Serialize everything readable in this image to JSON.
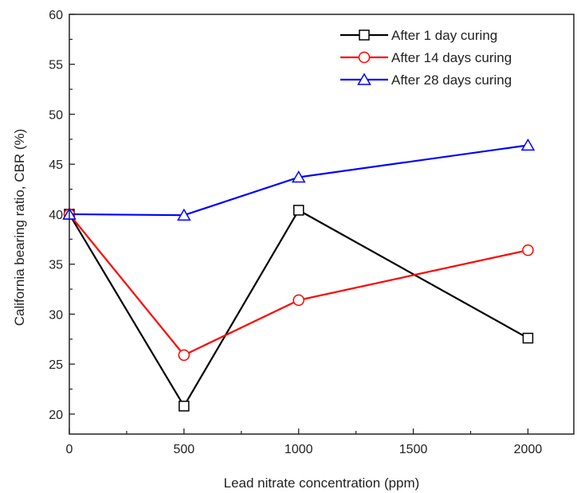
{
  "chart_data": {
    "type": "line",
    "xlabel": "Lead nitrate concentration (ppm)",
    "ylabel": "California bearing ratio, CBR (%)",
    "xlim": [
      0,
      2200
    ],
    "ylim": [
      18,
      60
    ],
    "xticks": [
      0,
      500,
      1000,
      1500,
      2000
    ],
    "yticks": [
      20,
      25,
      30,
      35,
      40,
      45,
      50,
      55,
      60
    ],
    "x_tick_labels": [
      "0",
      "500",
      "1000",
      "1500",
      "2000"
    ],
    "y_tick_labels": [
      "20",
      "25",
      "30",
      "35",
      "40",
      "45",
      "50",
      "55",
      "60"
    ],
    "legend_position": "top-right",
    "grid": false,
    "series": [
      {
        "name": "After 1 day curing",
        "color": "#000000",
        "marker": "square",
        "x": [
          0,
          500,
          1000,
          2000
        ],
        "y": [
          40.0,
          20.8,
          40.4,
          27.6
        ]
      },
      {
        "name": "After 14 days curing",
        "color": "#ff0000",
        "marker": "circle",
        "x": [
          0,
          500,
          1000,
          2000
        ],
        "y": [
          40.0,
          25.9,
          31.4,
          36.4
        ]
      },
      {
        "name": "After 28 days curing",
        "color": "#0000ff",
        "marker": "triangle",
        "x": [
          0,
          500,
          1000,
          2000
        ],
        "y": [
          40.0,
          39.9,
          43.7,
          46.9
        ]
      }
    ]
  }
}
